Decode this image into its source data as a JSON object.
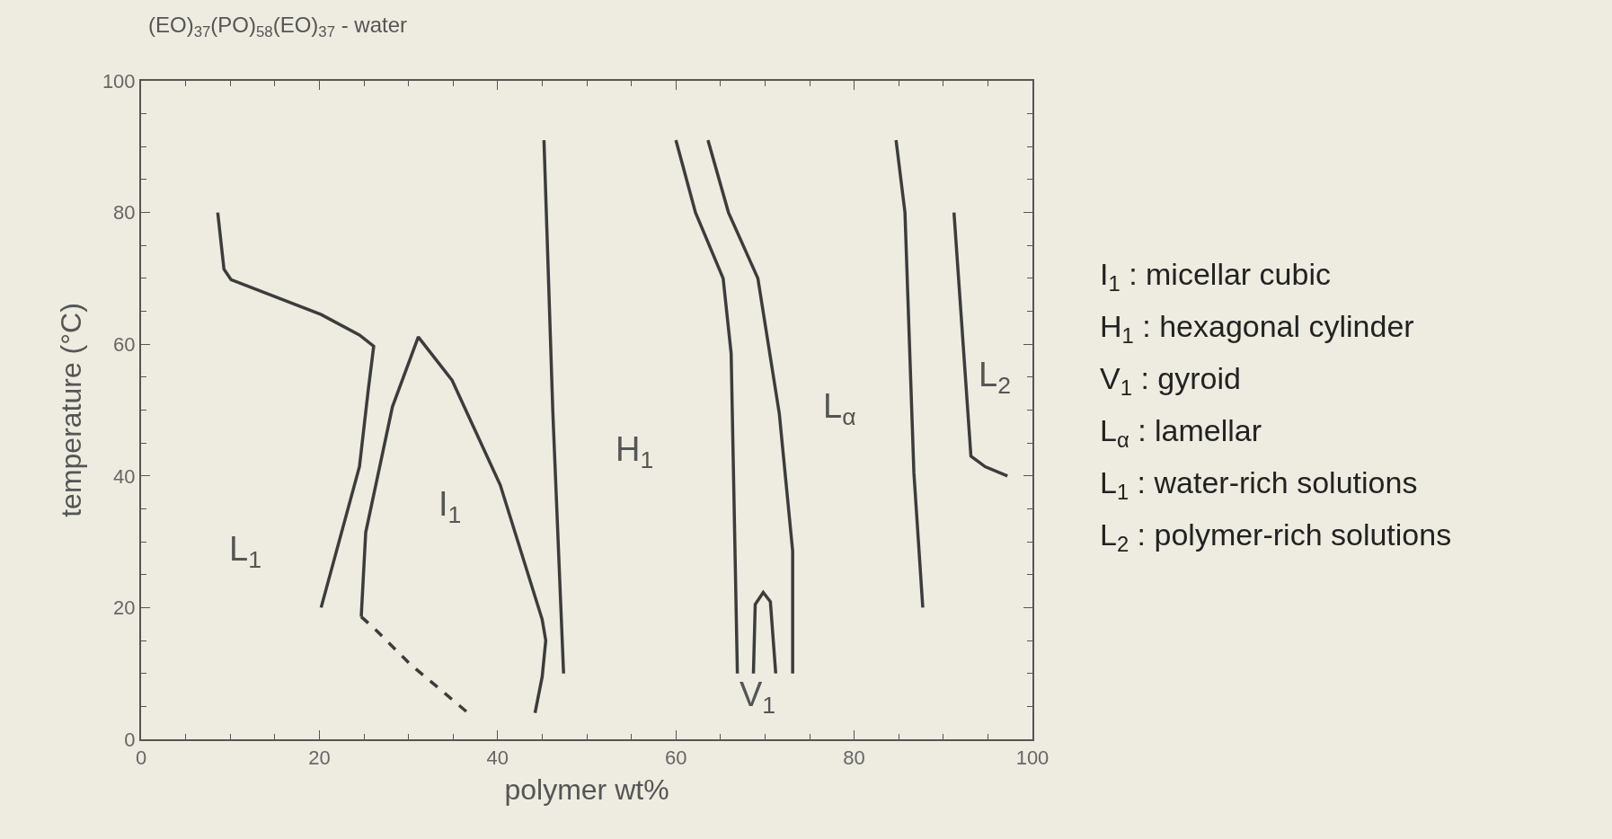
{
  "chart_data": {
    "type": "line",
    "title": "(EO)$_{37}$(PO)$_{58}$(EO)$_{37}$ - water",
    "xlabel": "polymer wt%",
    "ylabel": "temperature (°C)",
    "xlim": [
      0,
      100
    ],
    "ylim": [
      0,
      100
    ],
    "xticks": [
      0,
      20,
      40,
      60,
      80,
      100
    ],
    "yticks": [
      0,
      20,
      40,
      60,
      80,
      100
    ],
    "grid": false,
    "marker": "none",
    "series": [
      {
        "color": "#3c3c3c",
        "line_style": "solid",
        "x": [
          8.6,
          9.3,
          10.1,
          20.2,
          24.5,
          26.1,
          25.5,
          24.5,
          20.2
        ],
        "values": [
          80,
          71.4,
          69.8,
          64.5,
          61.4,
          59.7,
          53.2,
          41.4,
          20
        ]
      },
      {
        "color": "#3c3c3c",
        "line_style": "solid",
        "x": [
          24.7,
          25.2,
          28.2,
          31.1,
          34.9,
          40.3,
          45,
          45.4,
          45,
          44.2
        ],
        "values": [
          18.6,
          31.4,
          50.5,
          61.1,
          54.5,
          38.6,
          18.2,
          15,
          9.5,
          4
        ]
      },
      {
        "color": "#3c3c3c",
        "line_style": "dashed",
        "x": [
          24.7,
          26.2,
          30.2,
          36.6
        ],
        "values": [
          18.6,
          16.8,
          11.4,
          4.1
        ]
      },
      {
        "color": "#3c3c3c",
        "line_style": "solid",
        "x": [
          45.2,
          46.2,
          47.4
        ],
        "values": [
          91,
          49.5,
          10
        ]
      },
      {
        "color": "#3c3c3c",
        "line_style": "solid",
        "x": [
          60,
          62.2,
          65.3,
          66.2,
          66.9
        ],
        "values": [
          91,
          80,
          70,
          58.6,
          10
        ]
      },
      {
        "color": "#3c3c3c",
        "line_style": "solid",
        "x": [
          63.6,
          65.9,
          69.2,
          71.6,
          73.1,
          73.1
        ],
        "values": [
          91,
          80,
          70,
          49.5,
          28.6,
          10
        ]
      },
      {
        "color": "#3c3c3c",
        "line_style": "solid",
        "x": [
          68.7,
          68.9,
          69.8,
          70.6,
          71.2
        ],
        "values": [
          10,
          20.5,
          22.3,
          20.9,
          10
        ]
      },
      {
        "color": "#3c3c3c",
        "line_style": "solid",
        "x": [
          84.7,
          85.7,
          86.7,
          87.7
        ],
        "values": [
          91,
          80,
          40.5,
          20
        ]
      },
      {
        "color": "#3c3c3c",
        "line_style": "solid",
        "x": [
          91.2,
          93.1,
          94.7,
          97.2
        ],
        "values": [
          80,
          43,
          41.4,
          40
        ]
      }
    ],
    "annotations": [
      "L$_{1}$",
      "I$_{1}$",
      "H$_{1}$",
      "V$_{1}$",
      "L$_{α}$",
      "L$_{2}$",
      "I$_{1}$ : micellar cubic",
      "H$_{1}$ : hexagonal cylinder",
      "V$_{1}$ : gyroid",
      "L$_{α}$ : lamellar",
      "L$_{1}$ : water-rich solutions",
      "L$_{2}$ : polymer-rich solutions"
    ]
  }
}
